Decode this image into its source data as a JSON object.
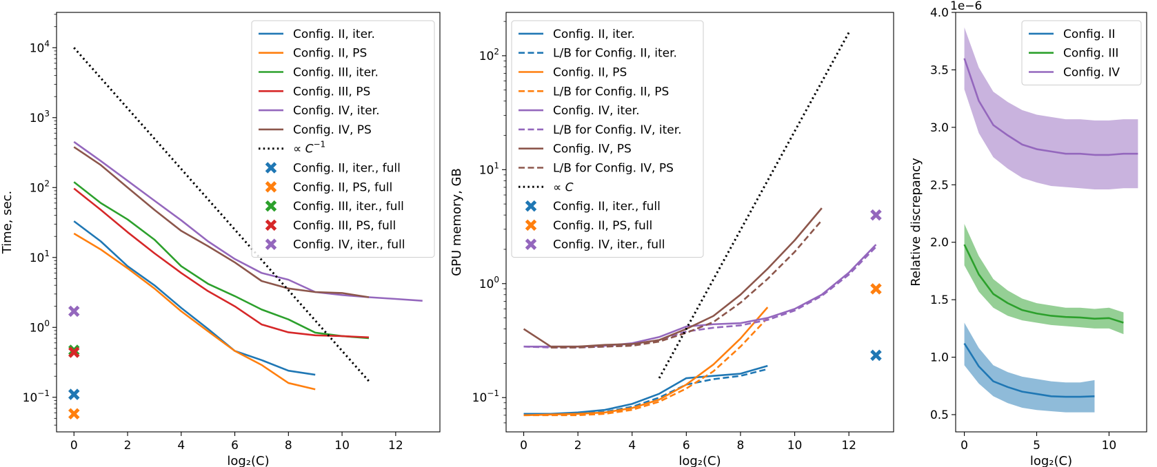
{
  "chart_data": [
    {
      "type": "line",
      "yscale": "log",
      "xlabel": "log₂(C)",
      "ylabel": "Time, sec.",
      "xlim": [
        -0.65,
        13.65
      ],
      "ylim": [
        0.032,
        32000
      ],
      "xticks": [
        0,
        2,
        4,
        6,
        8,
        10,
        12
      ],
      "xtick_labels": [
        "0",
        "2",
        "4",
        "6",
        "8",
        "10",
        "12"
      ],
      "yticks": [
        0.1,
        1,
        10,
        100,
        1000,
        10000
      ],
      "ytick_labels": [
        {
          "base": "10",
          "exp": "−1"
        },
        {
          "base": "10",
          "exp": "0"
        },
        {
          "base": "10",
          "exp": "1"
        },
        {
          "base": "10",
          "exp": "2"
        },
        {
          "base": "10",
          "exp": "3"
        },
        {
          "base": "10",
          "exp": "4"
        }
      ],
      "legend_position": "upper right",
      "series": [
        {
          "name": "Config. II, iter.",
          "color": "#1f77b4",
          "style": "solid",
          "x": [
            0,
            1,
            2,
            3,
            4,
            5,
            6,
            7,
            8,
            9
          ],
          "y": [
            33,
            17,
            7.5,
            4,
            1.9,
            0.95,
            0.46,
            0.34,
            0.24,
            0.21
          ]
        },
        {
          "name": "Config. II, PS",
          "color": "#ff7f0e",
          "style": "solid",
          "x": [
            0,
            1,
            2,
            3,
            4,
            5,
            6,
            7,
            8,
            9
          ],
          "y": [
            22,
            13,
            7,
            3.6,
            1.7,
            0.88,
            0.46,
            0.29,
            0.16,
            0.13
          ]
        },
        {
          "name": "Config. III, iter.",
          "color": "#2ca02c",
          "style": "solid",
          "x": [
            0,
            1,
            2,
            3,
            4,
            5,
            6,
            7,
            8,
            9,
            10,
            11
          ],
          "y": [
            120,
            60,
            35,
            18,
            7.5,
            4.2,
            2.8,
            1.8,
            1.3,
            0.84,
            0.75,
            0.7
          ]
        },
        {
          "name": "Config. III, PS",
          "color": "#d62728",
          "style": "solid",
          "x": [
            0,
            1,
            2,
            3,
            4,
            5,
            6,
            7,
            8,
            9,
            10,
            11
          ],
          "y": [
            97,
            48,
            23,
            11.5,
            6,
            3.3,
            2,
            1.1,
            0.85,
            0.77,
            0.75,
            0.72
          ]
        },
        {
          "name": "Config. IV, iter.",
          "color": "#9467bd",
          "style": "solid",
          "x": [
            0,
            1,
            2,
            3,
            4,
            5,
            6,
            7,
            8,
            9,
            10,
            11,
            12,
            13
          ],
          "y": [
            450,
            240,
            125,
            65,
            34,
            17,
            9.5,
            6,
            4.8,
            3.2,
            2.9,
            2.7,
            2.55,
            2.4
          ]
        },
        {
          "name": "Config. IV, PS",
          "color": "#8c564b",
          "style": "solid",
          "x": [
            0,
            1,
            2,
            3,
            4,
            5,
            6,
            7,
            8,
            9,
            10,
            11
          ],
          "y": [
            380,
            210,
            100,
            48,
            24,
            14.5,
            8.5,
            4.6,
            3.6,
            3.2,
            3.1,
            2.7
          ]
        },
        {
          "name": "∝ C⁻¹",
          "color": "#000000",
          "style": "dotted",
          "x": [
            0,
            11
          ],
          "y": [
            10000,
            0.17
          ]
        }
      ],
      "markers": [
        {
          "name": "Config. II, iter., full",
          "color": "#1f77b4",
          "x": 0,
          "y": 0.11
        },
        {
          "name": "Config. II, PS, full",
          "color": "#ff7f0e",
          "x": 0,
          "y": 0.058
        },
        {
          "name": "Config. III, iter., full",
          "color": "#2ca02c",
          "x": 0,
          "y": 0.47
        },
        {
          "name": "Config. III, PS, full",
          "color": "#d62728",
          "x": 0,
          "y": 0.44
        },
        {
          "name": "Config. IV, iter., full",
          "color": "#9467bd",
          "x": 0,
          "y": 1.7
        }
      ],
      "legend": [
        {
          "label": "Config. II, iter.",
          "color": "#1f77b4",
          "kind": "solid"
        },
        {
          "label": "Config. II, PS",
          "color": "#ff7f0e",
          "kind": "solid"
        },
        {
          "label": "Config. III, iter.",
          "color": "#2ca02c",
          "kind": "solid"
        },
        {
          "label": "Config. III, PS",
          "color": "#d62728",
          "kind": "solid"
        },
        {
          "label": "Config. IV, iter.",
          "color": "#9467bd",
          "kind": "solid"
        },
        {
          "label": "Config. IV, PS",
          "color": "#8c564b",
          "kind": "solid"
        },
        {
          "label": "∝ C⁻¹",
          "color": "#000000",
          "kind": "dotted",
          "math": {
            "prefix": "∝ ",
            "base": "C",
            "exp": "−1"
          }
        },
        {
          "label": "Config. II, iter., full",
          "color": "#1f77b4",
          "kind": "marker"
        },
        {
          "label": "Config. II, PS, full",
          "color": "#ff7f0e",
          "kind": "marker"
        },
        {
          "label": "Config. III, iter., full",
          "color": "#2ca02c",
          "kind": "marker"
        },
        {
          "label": "Config. III, PS, full",
          "color": "#d62728",
          "kind": "marker"
        },
        {
          "label": "Config. IV, iter., full",
          "color": "#9467bd",
          "kind": "marker"
        }
      ]
    },
    {
      "type": "line",
      "yscale": "log",
      "xlabel": "log₂(C)",
      "ylabel": "GPU memory, GB",
      "xlim": [
        -0.65,
        13.65
      ],
      "ylim": [
        0.05,
        240
      ],
      "xticks": [
        0,
        2,
        4,
        6,
        8,
        10,
        12
      ],
      "xtick_labels": [
        "0",
        "2",
        "4",
        "6",
        "8",
        "10",
        "12"
      ],
      "yticks": [
        0.1,
        1,
        10,
        100
      ],
      "ytick_labels": [
        {
          "base": "10",
          "exp": "−1"
        },
        {
          "base": "10",
          "exp": "0"
        },
        {
          "base": "10",
          "exp": "1"
        },
        {
          "base": "10",
          "exp": "2"
        }
      ],
      "legend_position": "upper left",
      "series": [
        {
          "name": "Config. II, iter.",
          "color": "#1f77b4",
          "style": "solid",
          "x": [
            0,
            1,
            2,
            3,
            4,
            5,
            6,
            7,
            8,
            9
          ],
          "y": [
            0.072,
            0.072,
            0.074,
            0.078,
            0.088,
            0.108,
            0.148,
            0.155,
            0.162,
            0.19
          ]
        },
        {
          "name": "L/B for Config. II, iter.",
          "color": "#1f77b4",
          "style": "dashed",
          "x": [
            0,
            1,
            2,
            3,
            4,
            5,
            6,
            7,
            8,
            9
          ],
          "y": [
            0.071,
            0.071,
            0.072,
            0.075,
            0.083,
            0.1,
            0.13,
            0.145,
            0.155,
            0.178
          ]
        },
        {
          "name": "Config. II, PS",
          "color": "#ff7f0e",
          "style": "solid",
          "x": [
            0,
            1,
            2,
            3,
            4,
            5,
            6,
            7,
            8,
            9
          ],
          "y": [
            0.07,
            0.071,
            0.072,
            0.074,
            0.081,
            0.096,
            0.13,
            0.195,
            0.33,
            0.62
          ]
        },
        {
          "name": "L/B for Config. II, PS",
          "color": "#ff7f0e",
          "style": "dashed",
          "x": [
            0,
            1,
            2,
            3,
            4,
            5,
            6,
            7,
            8,
            9
          ],
          "y": [
            0.07,
            0.07,
            0.07,
            0.072,
            0.078,
            0.092,
            0.12,
            0.17,
            0.28,
            0.5
          ]
        },
        {
          "name": "Config. IV, iter.",
          "color": "#9467bd",
          "style": "solid",
          "x": [
            0,
            1,
            2,
            3,
            4,
            5,
            6,
            7,
            8,
            9,
            10,
            11,
            12,
            13
          ],
          "y": [
            0.28,
            0.28,
            0.28,
            0.285,
            0.3,
            0.34,
            0.42,
            0.44,
            0.45,
            0.5,
            0.6,
            0.8,
            1.25,
            2.2
          ]
        },
        {
          "name": "L/B for Config. IV, iter.",
          "color": "#9467bd",
          "style": "dashed",
          "x": [
            0,
            1,
            2,
            3,
            4,
            5,
            6,
            7,
            8,
            9,
            10,
            11,
            12,
            13
          ],
          "y": [
            0.28,
            0.275,
            0.275,
            0.28,
            0.29,
            0.32,
            0.38,
            0.41,
            0.43,
            0.48,
            0.58,
            0.78,
            1.2,
            2.1
          ]
        },
        {
          "name": "Config. IV, PS",
          "color": "#8c564b",
          "style": "solid",
          "x": [
            0,
            1,
            2,
            3,
            4,
            5,
            6,
            7,
            8,
            9,
            10,
            11
          ],
          "y": [
            0.4,
            0.28,
            0.28,
            0.29,
            0.295,
            0.32,
            0.4,
            0.52,
            0.8,
            1.35,
            2.4,
            4.6
          ]
        },
        {
          "name": "L/B for Config. IV, PS",
          "color": "#8c564b",
          "style": "dashed",
          "x": [
            1,
            2,
            3,
            4,
            5,
            6,
            7,
            8,
            9,
            10,
            11
          ],
          "y": [
            0.275,
            0.275,
            0.28,
            0.285,
            0.31,
            0.37,
            0.46,
            0.68,
            1.1,
            1.9,
            3.6
          ]
        },
        {
          "name": "∝ C",
          "color": "#000000",
          "style": "dotted",
          "x": [
            5,
            12
          ],
          "y": [
            0.148,
            160
          ]
        }
      ],
      "markers": [
        {
          "name": "Config. II, iter., full",
          "color": "#1f77b4",
          "x": 13,
          "y": 0.235
        },
        {
          "name": "Config. II, PS, full",
          "color": "#ff7f0e",
          "x": 13,
          "y": 0.9
        },
        {
          "name": "Config. IV, iter., full",
          "color": "#9467bd",
          "x": 13,
          "y": 4.0
        }
      ],
      "legend": [
        {
          "label": "Config. II, iter.",
          "color": "#1f77b4",
          "kind": "solid"
        },
        {
          "label": "L/B for Config. II, iter.",
          "color": "#1f77b4",
          "kind": "dashed"
        },
        {
          "label": "Config. II, PS",
          "color": "#ff7f0e",
          "kind": "solid"
        },
        {
          "label": "L/B for Config. II, PS",
          "color": "#ff7f0e",
          "kind": "dashed"
        },
        {
          "label": "Config. IV, iter.",
          "color": "#9467bd",
          "kind": "solid"
        },
        {
          "label": "L/B for Config. IV, iter.",
          "color": "#9467bd",
          "kind": "dashed"
        },
        {
          "label": "Config. IV, PS",
          "color": "#8c564b",
          "kind": "solid"
        },
        {
          "label": "L/B for Config. IV, PS",
          "color": "#8c564b",
          "kind": "dashed"
        },
        {
          "label": "∝ C",
          "color": "#000000",
          "kind": "dotted",
          "math": {
            "prefix": "∝ ",
            "base": "C",
            "exp": ""
          }
        },
        {
          "label": "Config. II, iter., full",
          "color": "#1f77b4",
          "kind": "marker"
        },
        {
          "label": "Config. II, PS, full",
          "color": "#ff7f0e",
          "kind": "marker"
        },
        {
          "label": "Config. IV, iter., full",
          "color": "#9467bd",
          "kind": "marker"
        }
      ]
    },
    {
      "type": "area",
      "yscale": "linear",
      "xlabel": "log₂(C)",
      "ylabel": "Relative discrepancy",
      "offset_label": "1e−6",
      "xlim": [
        -0.6,
        12.6
      ],
      "ylim": [
        0.35,
        4.0
      ],
      "xticks": [
        0,
        5,
        10
      ],
      "xtick_labels": [
        "0",
        "5",
        "10"
      ],
      "yticks": [
        0.5,
        1.0,
        1.5,
        2.0,
        2.5,
        3.0,
        3.5,
        4.0
      ],
      "ytick_labels": [
        "0.5",
        "1.0",
        "1.5",
        "2.0",
        "2.5",
        "3.0",
        "3.5",
        "4.0"
      ],
      "legend_position": "upper right",
      "series": [
        {
          "name": "Config. II",
          "color": "#1f77b4",
          "style": "solid",
          "x": [
            0,
            1,
            2,
            3,
            4,
            5,
            6,
            7,
            8,
            9
          ],
          "y": [
            1.12,
            0.92,
            0.79,
            0.74,
            0.7,
            0.68,
            0.66,
            0.655,
            0.655,
            0.66
          ],
          "lower": [
            0.93,
            0.77,
            0.66,
            0.6,
            0.56,
            0.54,
            0.53,
            0.52,
            0.52,
            0.52
          ],
          "upper": [
            1.3,
            1.08,
            0.93,
            0.87,
            0.83,
            0.81,
            0.79,
            0.78,
            0.78,
            0.8
          ]
        },
        {
          "name": "Config. III",
          "color": "#2ca02c",
          "style": "solid",
          "x": [
            0,
            1,
            2,
            3,
            4,
            5,
            6,
            7,
            8,
            9,
            10,
            11
          ],
          "y": [
            1.98,
            1.72,
            1.55,
            1.47,
            1.41,
            1.38,
            1.36,
            1.35,
            1.345,
            1.335,
            1.34,
            1.3
          ],
          "lower": [
            1.8,
            1.57,
            1.43,
            1.36,
            1.32,
            1.3,
            1.28,
            1.27,
            1.26,
            1.25,
            1.25,
            1.2
          ],
          "upper": [
            2.16,
            1.88,
            1.68,
            1.58,
            1.51,
            1.47,
            1.45,
            1.43,
            1.43,
            1.42,
            1.43,
            1.39
          ]
        },
        {
          "name": "Config. IV",
          "color": "#9467bd",
          "style": "solid",
          "x": [
            0,
            1,
            2,
            3,
            4,
            5,
            6,
            7,
            8,
            9,
            10,
            11,
            12
          ],
          "y": [
            3.6,
            3.23,
            3.02,
            2.93,
            2.85,
            2.81,
            2.79,
            2.77,
            2.77,
            2.76,
            2.76,
            2.77,
            2.77
          ],
          "lower": [
            3.33,
            2.95,
            2.74,
            2.64,
            2.56,
            2.52,
            2.49,
            2.48,
            2.47,
            2.46,
            2.46,
            2.47,
            2.47
          ],
          "upper": [
            3.87,
            3.52,
            3.31,
            3.22,
            3.15,
            3.11,
            3.09,
            3.07,
            3.07,
            3.06,
            3.06,
            3.07,
            3.07
          ]
        }
      ],
      "markers": [],
      "legend": [
        {
          "label": "Config. II",
          "color": "#1f77b4",
          "kind": "solid"
        },
        {
          "label": "Config. III",
          "color": "#2ca02c",
          "kind": "solid"
        },
        {
          "label": "Config. IV",
          "color": "#9467bd",
          "kind": "solid"
        }
      ]
    }
  ]
}
